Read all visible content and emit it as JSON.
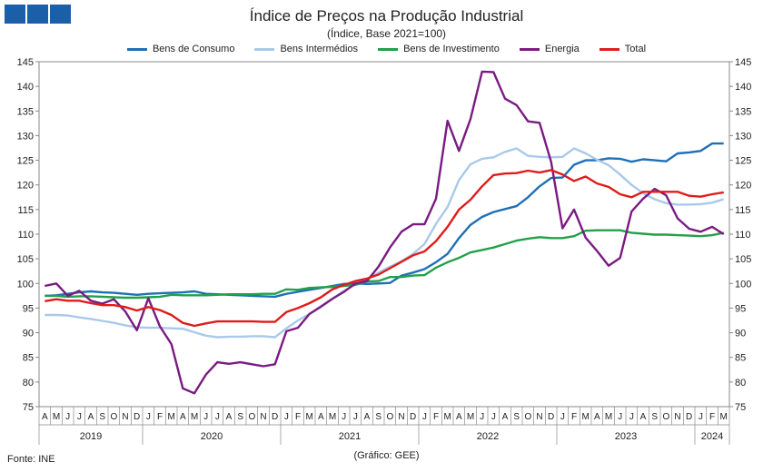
{
  "chart_data": {
    "type": "line",
    "title": "Índice de Preços na Produção Industrial",
    "subtitle": "(Índice, Base 2021=100)",
    "ylim": [
      75,
      145
    ],
    "yticks": [
      75,
      80,
      85,
      90,
      95,
      100,
      105,
      110,
      115,
      120,
      125,
      130,
      135,
      140,
      145
    ],
    "month_labels": [
      "A",
      "M",
      "J",
      "J",
      "A",
      "S",
      "O",
      "N",
      "D",
      "J",
      "F",
      "M",
      "A",
      "M",
      "J",
      "J",
      "A",
      "S",
      "O",
      "N",
      "D",
      "J",
      "F",
      "M",
      "A",
      "M",
      "J",
      "J",
      "A",
      "S",
      "O",
      "N",
      "D",
      "J",
      "F",
      "M",
      "A",
      "M",
      "J",
      "J",
      "A",
      "S",
      "O",
      "N",
      "D",
      "J",
      "F",
      "M",
      "A",
      "M",
      "J",
      "J",
      "A",
      "S",
      "O",
      "N",
      "D",
      "J",
      "F",
      "M"
    ],
    "year_groups": [
      {
        "label": "2019",
        "start": 0,
        "end": 8
      },
      {
        "label": "2020",
        "start": 9,
        "end": 20
      },
      {
        "label": "2021",
        "start": 21,
        "end": 32
      },
      {
        "label": "2022",
        "start": 33,
        "end": 44
      },
      {
        "label": "2023",
        "start": 45,
        "end": 56
      },
      {
        "label": "2024",
        "start": 57,
        "end": 59
      }
    ],
    "legend_position": "top",
    "grid": false,
    "series": [
      {
        "name": "Bens de Consumo",
        "color": "#1f6fb5",
        "values": [
          97.5,
          97.6,
          97.9,
          98.2,
          98.4,
          98.2,
          98.1,
          97.9,
          97.7,
          97.9,
          98.0,
          98.1,
          98.2,
          98.4,
          97.9,
          97.8,
          97.7,
          97.6,
          97.5,
          97.4,
          97.3,
          97.9,
          98.3,
          98.7,
          99.1,
          99.5,
          99.9,
          100.0,
          99.9,
          100.0,
          100.1,
          101.6,
          102.2,
          102.9,
          104.3,
          106.0,
          109.2,
          111.9,
          113.5,
          114.5,
          115.1,
          115.7,
          117.5,
          119.7,
          121.4,
          121.5,
          124.1,
          125.0,
          125.0,
          125.4,
          125.3,
          124.7,
          125.2,
          125.0,
          124.8,
          126.4,
          126.6,
          126.9,
          128.4,
          128.4
        ]
      },
      {
        "name": "Bens Intermédios",
        "color": "#a9c9ea",
        "values": [
          93.6,
          93.6,
          93.5,
          93.1,
          92.8,
          92.4,
          92.0,
          91.5,
          91.1,
          91.0,
          91.0,
          90.9,
          90.8,
          90.1,
          89.4,
          89.1,
          89.2,
          89.2,
          89.3,
          89.3,
          89.1,
          90.9,
          92.5,
          93.8,
          95.2,
          96.9,
          98.5,
          99.8,
          100.8,
          102.2,
          103.4,
          104.5,
          106.0,
          108.0,
          112.1,
          115.5,
          121.0,
          124.2,
          125.3,
          125.6,
          126.7,
          127.4,
          125.9,
          125.7,
          125.6,
          125.7,
          127.4,
          126.4,
          125.1,
          124.0,
          122.1,
          120.0,
          118.3,
          117.1,
          116.3,
          116.0,
          116.0,
          116.1,
          116.4,
          117.1
        ]
      },
      {
        "name": "Bens de Investimento",
        "color": "#22a04a",
        "values": [
          97.5,
          97.5,
          97.3,
          97.4,
          97.4,
          97.3,
          97.2,
          97.1,
          97.1,
          97.2,
          97.3,
          97.7,
          97.6,
          97.6,
          97.6,
          97.7,
          97.8,
          97.8,
          97.8,
          97.9,
          97.9,
          98.8,
          98.7,
          99.1,
          99.2,
          99.3,
          99.5,
          99.7,
          100.4,
          100.5,
          101.3,
          101.3,
          101.6,
          101.7,
          103.2,
          104.3,
          105.2,
          106.3,
          106.8,
          107.3,
          108.0,
          108.7,
          109.1,
          109.4,
          109.2,
          109.2,
          109.6,
          110.7,
          110.8,
          110.8,
          110.8,
          110.3,
          110.1,
          109.9,
          109.9,
          109.8,
          109.7,
          109.6,
          109.8,
          110.3
        ]
      },
      {
        "name": "Energia",
        "color": "#7a1a82",
        "values": [
          99.5,
          100.0,
          97.5,
          98.5,
          96.5,
          95.9,
          96.8,
          94.3,
          90.5,
          97.0,
          91.3,
          87.7,
          78.7,
          77.7,
          81.5,
          84.0,
          83.7,
          84.0,
          83.6,
          83.2,
          83.6,
          90.3,
          91.0,
          93.8,
          95.3,
          96.9,
          98.3,
          100.0,
          100.5,
          103.4,
          107.3,
          110.5,
          112.0,
          112.0,
          117.2,
          133.0,
          126.9,
          133.4,
          143.0,
          142.9,
          137.5,
          136.2,
          132.9,
          132.6,
          124.7,
          111.2,
          115.0,
          109.3,
          106.6,
          103.6,
          105.2,
          114.6,
          117.2,
          119.2,
          117.9,
          113.2,
          111.1,
          110.5,
          111.5,
          110.0
        ]
      },
      {
        "name": "Total",
        "color": "#e01b1b",
        "values": [
          96.4,
          96.8,
          96.5,
          96.5,
          96.0,
          95.6,
          95.6,
          95.2,
          94.5,
          95.2,
          94.6,
          93.6,
          92.0,
          91.4,
          91.9,
          92.3,
          92.3,
          92.3,
          92.3,
          92.2,
          92.2,
          94.2,
          95.0,
          96.0,
          97.2,
          98.8,
          99.7,
          100.5,
          101.0,
          101.8,
          103.1,
          104.4,
          105.7,
          106.5,
          108.6,
          111.5,
          115.0,
          117.0,
          119.7,
          122.0,
          122.3,
          122.4,
          122.9,
          122.5,
          123.0,
          122.1,
          120.8,
          121.7,
          120.3,
          119.6,
          118.1,
          117.5,
          118.6,
          118.6,
          118.6,
          118.6,
          117.8,
          117.6,
          118.1,
          118.5
        ]
      }
    ]
  },
  "footer": {
    "source": "Fonte: INE",
    "credit": "(Gráfico: GEE)"
  }
}
